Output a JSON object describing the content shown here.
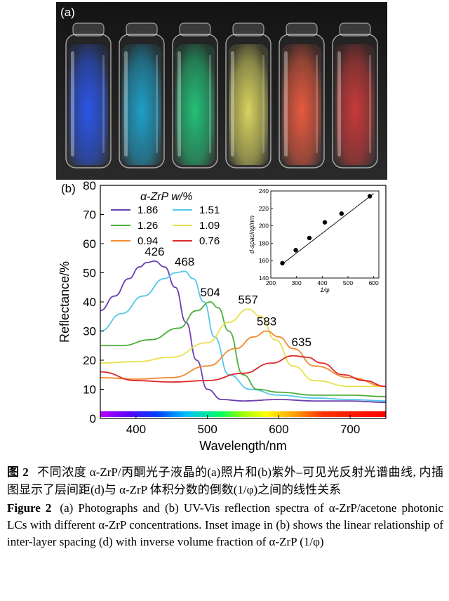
{
  "photo": {
    "panel_label": "(a)",
    "vials": [
      {
        "color": "#2a56e8"
      },
      {
        "color": "#1ea0c8"
      },
      {
        "color": "#24c078"
      },
      {
        "color": "#d8d460"
      },
      {
        "color": "#e85a40"
      },
      {
        "color": "#c83a3a"
      }
    ]
  },
  "chart_data": {
    "type": "line",
    "panel_label": "(b)",
    "xlabel": "Wavelength/nm",
    "ylabel": "Reflectance/%",
    "xlim": [
      350,
      750
    ],
    "ylim": [
      0,
      80
    ],
    "xticks": [
      400,
      500,
      600,
      700
    ],
    "yticks": [
      0,
      10,
      20,
      30,
      40,
      50,
      60,
      70,
      80
    ],
    "legend_title": "α-ZrP w/%",
    "legend_placement": "top-left",
    "series": [
      {
        "name": "1.86",
        "color": "#6a3fb0",
        "peak_label": "426",
        "x": [
          350,
          370,
          390,
          405,
          415,
          426,
          440,
          455,
          470,
          485,
          500,
          520,
          550,
          600,
          650,
          700,
          750
        ],
        "y": [
          37,
          42,
          48,
          52,
          53.5,
          54,
          52,
          45,
          33,
          20,
          10,
          6.5,
          6,
          6.5,
          6,
          6,
          5.5
        ]
      },
      {
        "name": "1.51",
        "color": "#55c8e8",
        "peak_label": "468",
        "x": [
          350,
          380,
          410,
          440,
          455,
          468,
          480,
          495,
          510,
          530,
          560,
          600,
          650,
          700,
          750
        ],
        "y": [
          30,
          36,
          42,
          48,
          50,
          50.5,
          48,
          40,
          28,
          15,
          10,
          8,
          7,
          6.5,
          6
        ]
      },
      {
        "name": "1.26",
        "color": "#4caf3a",
        "peak_label": "504",
        "x": [
          350,
          380,
          420,
          460,
          485,
          504,
          515,
          530,
          550,
          570,
          600,
          650,
          700,
          750
        ],
        "y": [
          25,
          25,
          27,
          31,
          37,
          40,
          38,
          30,
          15,
          10,
          9,
          8,
          8,
          7.5
        ]
      },
      {
        "name": "1.09",
        "color": "#e8e04a",
        "peak_label": "557",
        "x": [
          350,
          400,
          450,
          500,
          530,
          557,
          575,
          595,
          620,
          650,
          700,
          750
        ],
        "y": [
          19,
          19.5,
          21,
          26,
          33,
          37.5,
          35,
          27,
          18,
          13,
          11,
          11
        ]
      },
      {
        "name": "0.94",
        "color": "#f08a30",
        "peak_label": "583",
        "x": [
          350,
          400,
          450,
          500,
          540,
          565,
          583,
          600,
          620,
          650,
          700,
          750
        ],
        "y": [
          14,
          13.5,
          14,
          18,
          24,
          28,
          30,
          28,
          24,
          18,
          14,
          11
        ]
      },
      {
        "name": "0.76",
        "color": "#e0282a",
        "peak_label": "635",
        "x": [
          350,
          400,
          450,
          500,
          550,
          590,
          620,
          640,
          660,
          690,
          720,
          750
        ],
        "y": [
          16,
          13,
          12.5,
          13,
          15.5,
          19,
          21.5,
          21,
          19,
          15,
          13,
          11
        ]
      }
    ],
    "inset": {
      "type": "scatter",
      "xlabel": "1/φ",
      "ylabel": "d-spacing/nm",
      "xlim": [
        200,
        620
      ],
      "ylim": [
        140,
        240
      ],
      "xticks": [
        200,
        300,
        400,
        500,
        600
      ],
      "yticks": [
        140,
        160,
        180,
        200,
        220,
        240
      ],
      "points": [
        {
          "x": 245,
          "y": 157
        },
        {
          "x": 297,
          "y": 172
        },
        {
          "x": 350,
          "y": 186
        },
        {
          "x": 410,
          "y": 204
        },
        {
          "x": 475,
          "y": 214
        },
        {
          "x": 585,
          "y": 234
        }
      ],
      "fit_line": {
        "x": [
          240,
          600
        ],
        "y": [
          155,
          237
        ]
      }
    }
  },
  "caption": {
    "cn_label": "图 2",
    "cn_text": "不同浓度 α-ZrP/丙酮光子液晶的(a)照片和(b)紫外–可见光反射光谱曲线, 内插图显示了层间距(d)与 α-ZrP 体积分数的倒数(1/φ)之间的线性关系",
    "en_label": "Figure 2",
    "en_text": "(a) Photographs and (b) UV-Vis reflection spectra of α-ZrP/acetone photonic LCs with different α-ZrP concentrations. Inset image in (b) shows the linear relationship of inter-layer spacing (d) with inverse volume fraction of α-ZrP (1/φ)"
  }
}
